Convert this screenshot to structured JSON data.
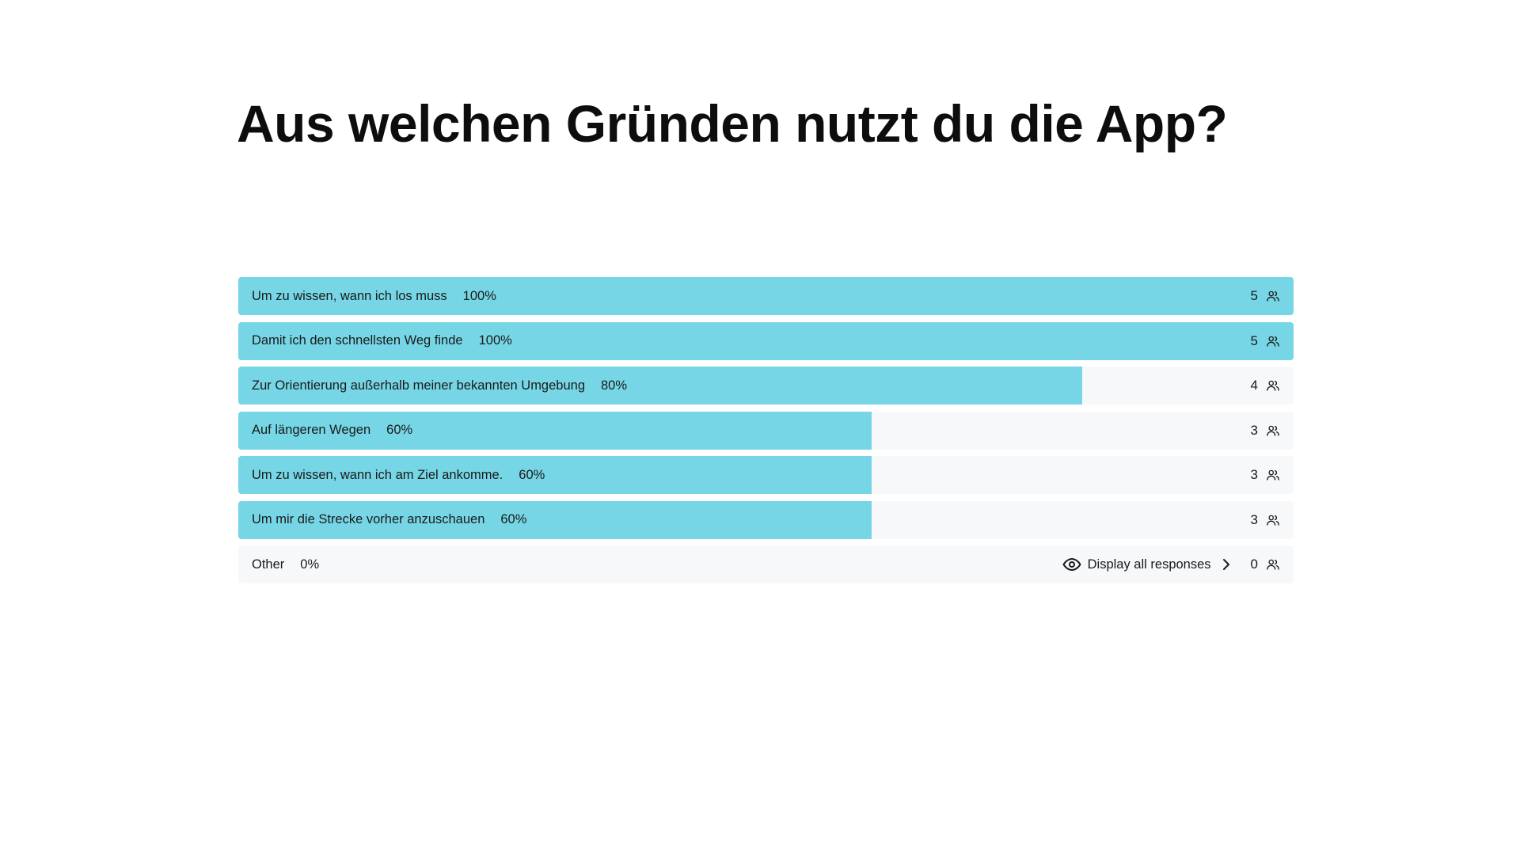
{
  "question": {
    "title": "Aus welchen Gründen nutzt du die App?"
  },
  "colors": {
    "bar_fill": "#76d6e5",
    "row_background": "#f7f8fa",
    "text": "#1a1a1a"
  },
  "chart_data": {
    "type": "bar",
    "orientation": "horizontal",
    "categories": [
      "Um zu wissen, wann ich los muss",
      "Damit ich den schnellsten Weg finde",
      "Zur Orientierung außerhalb meiner bekannten Umgebung",
      "Auf längeren Wegen",
      "Um zu wissen, wann ich am Ziel ankomme.",
      "Um mir die Strecke vorher anzuschauen",
      "Other"
    ],
    "percent_labels": [
      "100%",
      "100%",
      "80%",
      "60%",
      "60%",
      "60%",
      "0%"
    ],
    "percent_values": [
      100,
      100,
      80,
      60,
      60,
      60,
      0
    ],
    "counts": [
      5,
      5,
      4,
      3,
      3,
      3,
      0
    ],
    "xlim": [
      0,
      100
    ]
  },
  "other_row": {
    "display_all_label": "Display all responses",
    "display_all_icon": "eye-icon",
    "chevron_icon": "chevron-right-icon"
  },
  "icons": {
    "count_icon": "people-icon"
  }
}
